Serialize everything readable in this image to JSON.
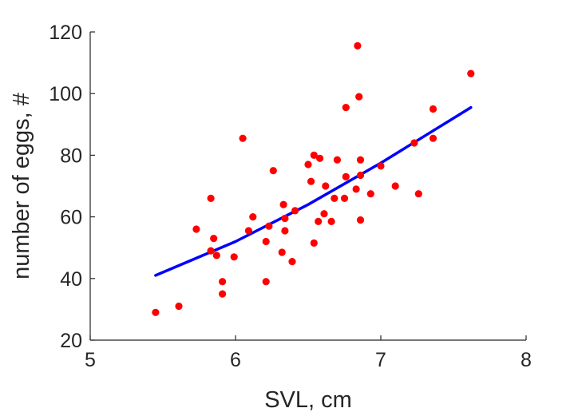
{
  "chart_data": {
    "type": "scatter",
    "title": "",
    "xlabel": "SVL, cm",
    "ylabel": "number of eggs, #",
    "xlim": [
      5,
      8
    ],
    "ylim": [
      20,
      120
    ],
    "xticks": [
      "5",
      "6",
      "7",
      "8"
    ],
    "yticks": [
      "20",
      "40",
      "60",
      "80",
      "100",
      "120"
    ],
    "grid": false,
    "legend": "none",
    "series": [
      {
        "kind": "scatter",
        "color": "#ff0000",
        "points": [
          [
            5.45,
            29
          ],
          [
            5.61,
            31
          ],
          [
            5.73,
            56
          ],
          [
            5.83,
            66
          ],
          [
            5.83,
            49
          ],
          [
            5.85,
            53
          ],
          [
            5.87,
            47.5
          ],
          [
            5.91,
            39
          ],
          [
            5.91,
            35
          ],
          [
            5.99,
            47
          ],
          [
            6.05,
            85.5
          ],
          [
            6.09,
            55.5
          ],
          [
            6.12,
            60
          ],
          [
            6.21,
            52
          ],
          [
            6.21,
            39
          ],
          [
            6.23,
            57
          ],
          [
            6.26,
            75
          ],
          [
            6.32,
            48.5
          ],
          [
            6.33,
            64
          ],
          [
            6.34,
            59.5
          ],
          [
            6.34,
            55.5
          ],
          [
            6.39,
            45.5
          ],
          [
            6.41,
            62
          ],
          [
            6.5,
            77
          ],
          [
            6.52,
            71.5
          ],
          [
            6.54,
            80
          ],
          [
            6.54,
            51.5
          ],
          [
            6.57,
            58.5
          ],
          [
            6.58,
            79
          ],
          [
            6.61,
            61
          ],
          [
            6.62,
            70
          ],
          [
            6.66,
            58.5
          ],
          [
            6.68,
            66
          ],
          [
            6.7,
            78.5
          ],
          [
            6.75,
            66
          ],
          [
            6.76,
            73
          ],
          [
            6.76,
            95.5
          ],
          [
            6.83,
            69
          ],
          [
            6.84,
            115.5
          ],
          [
            6.85,
            99
          ],
          [
            6.86,
            78.5
          ],
          [
            6.86,
            73.5
          ],
          [
            6.86,
            59
          ],
          [
            6.93,
            67.5
          ],
          [
            7.0,
            76.5
          ],
          [
            7.1,
            70
          ],
          [
            7.23,
            84
          ],
          [
            7.26,
            67.5
          ],
          [
            7.36,
            95
          ],
          [
            7.36,
            85.5
          ],
          [
            7.62,
            106.5
          ]
        ]
      },
      {
        "kind": "line",
        "color": "#0000ff",
        "points": [
          [
            5.45,
            41
          ],
          [
            6.0,
            52
          ],
          [
            6.5,
            64
          ],
          [
            7.0,
            77.5
          ],
          [
            7.62,
            95.5
          ]
        ]
      }
    ]
  }
}
